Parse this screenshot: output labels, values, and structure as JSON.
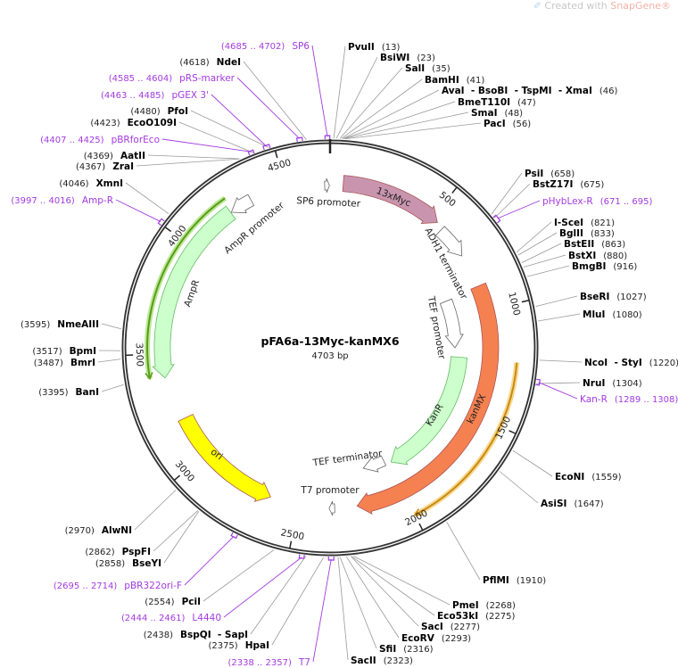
{
  "credit": {
    "prefix": "Created with ",
    "brand": "SnapGene®",
    "icon": "snapgene-logo-icon"
  },
  "plasmid": {
    "name": "pFA6a-13Myc-kanMX6",
    "size_label": "4703 bp",
    "length": 4703
  },
  "ticks": [
    "500",
    "1000",
    "1500",
    "2000",
    "2500",
    "3000",
    "3500",
    "4000",
    "4500"
  ],
  "sites": [
    {
      "name": "PvuII",
      "pos": 13
    },
    {
      "name": "BsiWI",
      "pos": 23
    },
    {
      "name": "SalI",
      "pos": 35
    },
    {
      "name": "BamHI",
      "pos": 41
    },
    {
      "name": "AvaI  - BsoBI  - TspMI  - XmaI",
      "pos": 46
    },
    {
      "name": "BmeT110I",
      "pos": 47
    },
    {
      "name": "SmaI",
      "pos": 48
    },
    {
      "name": "PacI",
      "pos": 56
    },
    {
      "name": "PsiI",
      "pos": 658
    },
    {
      "name": "BstZ17I",
      "pos": 675
    },
    {
      "name": "I-SceI",
      "pos": 821
    },
    {
      "name": "BglII",
      "pos": 833
    },
    {
      "name": "BstEII",
      "pos": 863
    },
    {
      "name": "BstXI",
      "pos": 880
    },
    {
      "name": "BmgBI",
      "pos": 916
    },
    {
      "name": "BseRI",
      "pos": 1027
    },
    {
      "name": "MluI",
      "pos": 1080
    },
    {
      "name": "NcoI  - StyI",
      "pos": 1220
    },
    {
      "name": "NruI",
      "pos": 1304
    },
    {
      "name": "EcoNI",
      "pos": 1559
    },
    {
      "name": "AsiSI",
      "pos": 1647
    },
    {
      "name": "PflMI",
      "pos": 1910
    },
    {
      "name": "PmeI",
      "pos": 2268
    },
    {
      "name": "Eco53kI",
      "pos": 2275
    },
    {
      "name": "SacI",
      "pos": 2277
    },
    {
      "name": "EcoRV",
      "pos": 2293
    },
    {
      "name": "SfiI",
      "pos": 2316
    },
    {
      "name": "SacII",
      "pos": 2323
    },
    {
      "name": "HpaI",
      "pos": 2375
    },
    {
      "name": "BspQI  - SapI",
      "pos": 2438
    },
    {
      "name": "PciI",
      "pos": 2554
    },
    {
      "name": "BseYI",
      "pos": 2858
    },
    {
      "name": "PspFI",
      "pos": 2862
    },
    {
      "name": "AlwNI",
      "pos": 2970
    },
    {
      "name": "BanI",
      "pos": 3395
    },
    {
      "name": "BmrI",
      "pos": 3487
    },
    {
      "name": "BpmI",
      "pos": 3517
    },
    {
      "name": "NmeAIII",
      "pos": 3595
    },
    {
      "name": "XmnI",
      "pos": 4046
    },
    {
      "name": "ZraI",
      "pos": 4367
    },
    {
      "name": "AatII",
      "pos": 4369
    },
    {
      "name": "EcoO109I",
      "pos": 4423
    },
    {
      "name": "PfoI",
      "pos": 4480
    },
    {
      "name": "NdeI",
      "pos": 4618
    }
  ],
  "primers": [
    {
      "name": "pHybLex-R",
      "range": "(671 .. 695)",
      "start": 671,
      "end": 695
    },
    {
      "name": "Kan-R",
      "range": "(1289 .. 1308)",
      "start": 1289,
      "end": 1308
    },
    {
      "name": "T7",
      "range": "(2338 .. 2357)",
      "start": 2338,
      "end": 2357
    },
    {
      "name": "L4440",
      "range": "(2444 .. 2461)",
      "start": 2444,
      "end": 2461
    },
    {
      "name": "pBR322ori-F",
      "range": "(2695 .. 2714)",
      "start": 2695,
      "end": 2714
    },
    {
      "name": "Amp-R",
      "range": "(3997 .. 4016)",
      "start": 3997,
      "end": 4016
    },
    {
      "name": "pBRforEco",
      "range": "(4407 .. 4425)",
      "start": 4407,
      "end": 4425
    },
    {
      "name": "pGEX 3'",
      "range": "(4463 .. 4485)",
      "start": 4463,
      "end": 4485
    },
    {
      "name": "pRS-marker",
      "range": "(4585 .. 4604)",
      "start": 4585,
      "end": 4604
    },
    {
      "name": "SP6",
      "range": "(4685 .. 4702)",
      "start": 4685,
      "end": 4702
    }
  ],
  "features": [
    {
      "name": "13xMyc",
      "start": 60,
      "end": 530,
      "dir": "cw",
      "color": "#c995ae"
    },
    {
      "name": "ADH1 terminator",
      "start": 565,
      "end": 720,
      "dir": "cw",
      "color": "#ffffff"
    },
    {
      "name": "kanMX",
      "start": 880,
      "end": 2225,
      "dir": "cw",
      "color": "#f58151"
    },
    {
      "name": "TEF promoter",
      "start": 890,
      "end": 1175,
      "dir": "cw",
      "color": "#ffffff"
    },
    {
      "name": "KanR",
      "start": 1230,
      "end": 1985,
      "dir": "cw",
      "color": "#ccffcc"
    },
    {
      "name": "TEF terminator",
      "start": 2020,
      "end": 2150,
      "dir": "cw",
      "color": "#ffffff"
    },
    {
      "name": "T7 promoter",
      "start": 2330,
      "end": 2356,
      "dir": "cw",
      "color": "#ffffff"
    },
    {
      "name": "SP6 promoter",
      "start": 4678,
      "end": 4700,
      "dir": "cw",
      "color": "#ffffff"
    },
    {
      "name": "ori",
      "start": 2635,
      "end": 3190,
      "dir": "ccw",
      "color": "#ffff00"
    },
    {
      "name": "AmpR",
      "start": 3392,
      "end": 4229,
      "dir": "ccw",
      "color": "#ccffcc"
    },
    {
      "name": "AmpR promoter",
      "start": 4232,
      "end": 4335,
      "dir": "ccw",
      "color": "#ffffff"
    }
  ],
  "orf_tracks": [
    {
      "start": 3400,
      "end": 4245,
      "dir": "ccw",
      "color": "#5a9a1a"
    },
    {
      "start": 1235,
      "end": 2000,
      "dir": "cw",
      "color": "#c98a10"
    }
  ],
  "colors": {
    "primer": "#a23be0",
    "backbone": "#333333"
  }
}
